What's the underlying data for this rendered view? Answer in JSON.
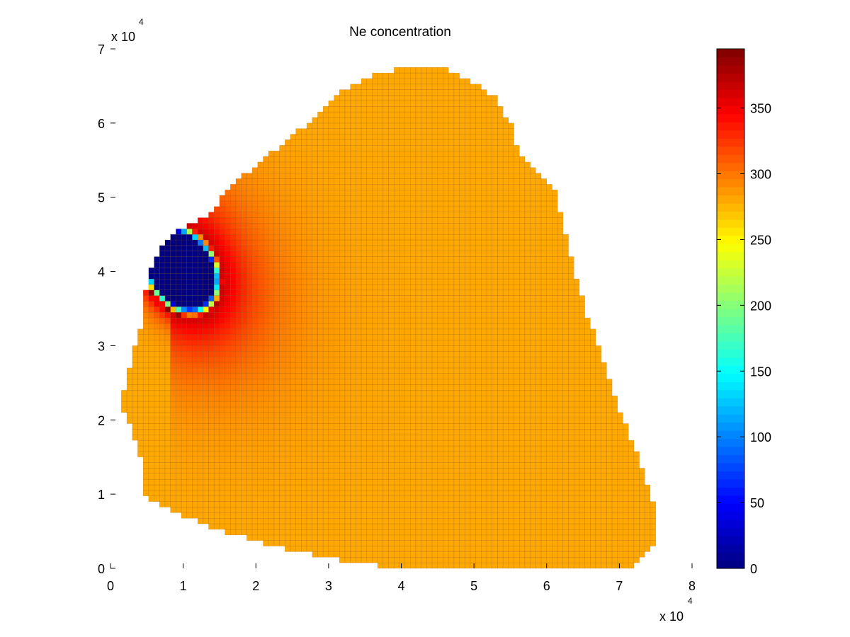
{
  "chart_data": {
    "type": "heatmap",
    "title": "Ne concentration",
    "xlabel": "",
    "ylabel": "",
    "x_multiplier": "x 10",
    "x_multiplier_exp": "4",
    "y_multiplier": "x 10",
    "y_multiplier_exp": "4",
    "xlim": [
      0,
      80000
    ],
    "ylim": [
      0,
      70000
    ],
    "xticks": [
      0,
      10000,
      20000,
      30000,
      40000,
      50000,
      60000,
      70000,
      80000
    ],
    "xtick_labels": [
      "0",
      "1",
      "2",
      "3",
      "4",
      "5",
      "6",
      "7",
      "8"
    ],
    "yticks": [
      0,
      10000,
      20000,
      30000,
      40000,
      50000,
      60000,
      70000
    ],
    "ytick_labels": [
      "0",
      "1",
      "2",
      "3",
      "4",
      "5",
      "6",
      "7"
    ],
    "colormap": "jet",
    "clim": [
      0,
      395
    ],
    "colorbar_ticks": [
      0,
      50,
      100,
      150,
      200,
      250,
      300,
      350
    ],
    "colorbar_tick_labels": [
      "0",
      "50",
      "100",
      "150",
      "200",
      "250",
      "300",
      "350"
    ],
    "grid_cell_size": 750,
    "background_value": 280,
    "domain_boundary": [
      [
        1500,
        21500
      ],
      [
        2200,
        25800
      ],
      [
        3000,
        28700
      ],
      [
        3800,
        30700
      ],
      [
        4200,
        32500
      ],
      [
        4600,
        36000
      ],
      [
        5200,
        39700
      ],
      [
        6600,
        42500
      ],
      [
        8500,
        44800
      ],
      [
        10600,
        46200
      ],
      [
        14000,
        47700
      ],
      [
        15200,
        50100
      ],
      [
        19000,
        53500
      ],
      [
        24000,
        57500
      ],
      [
        28400,
        60900
      ],
      [
        31800,
        64400
      ],
      [
        36400,
        66400
      ],
      [
        40500,
        67600
      ],
      [
        45500,
        67800
      ],
      [
        49300,
        65900
      ],
      [
        52900,
        63500
      ],
      [
        55300,
        59600
      ],
      [
        55700,
        57300
      ],
      [
        57000,
        55000
      ],
      [
        59500,
        52800
      ],
      [
        61600,
        50000
      ],
      [
        62200,
        46400
      ],
      [
        63400,
        41600
      ],
      [
        64500,
        37600
      ],
      [
        65700,
        33800
      ],
      [
        67200,
        29600
      ],
      [
        68600,
        25200
      ],
      [
        70200,
        20900
      ],
      [
        72000,
        16600
      ],
      [
        73500,
        12400
      ],
      [
        74900,
        8000
      ],
      [
        75000,
        3800
      ],
      [
        73000,
        1200
      ],
      [
        72000,
        0
      ],
      [
        54000,
        0
      ],
      [
        39500,
        0
      ],
      [
        34000,
        700
      ],
      [
        28000,
        1800
      ],
      [
        21000,
        3300
      ],
      [
        15000,
        5200
      ],
      [
        10000,
        7000
      ],
      [
        7000,
        8300
      ],
      [
        4200,
        10300
      ],
      [
        4400,
        13700
      ],
      [
        3600,
        16700
      ],
      [
        2800,
        18800
      ],
      [
        2000,
        20700
      ],
      [
        1500,
        21500
      ]
    ],
    "depletion_zone": {
      "center": [
        9800,
        40200
      ],
      "radius_x": 5200,
      "radius_y": 6900,
      "rotation_deg": 32,
      "inner_value": 0,
      "rim_peak_value": 395,
      "rim_width_fraction": 0.2,
      "halo_extent_fraction": 1.35,
      "halo_value": 345
    }
  }
}
